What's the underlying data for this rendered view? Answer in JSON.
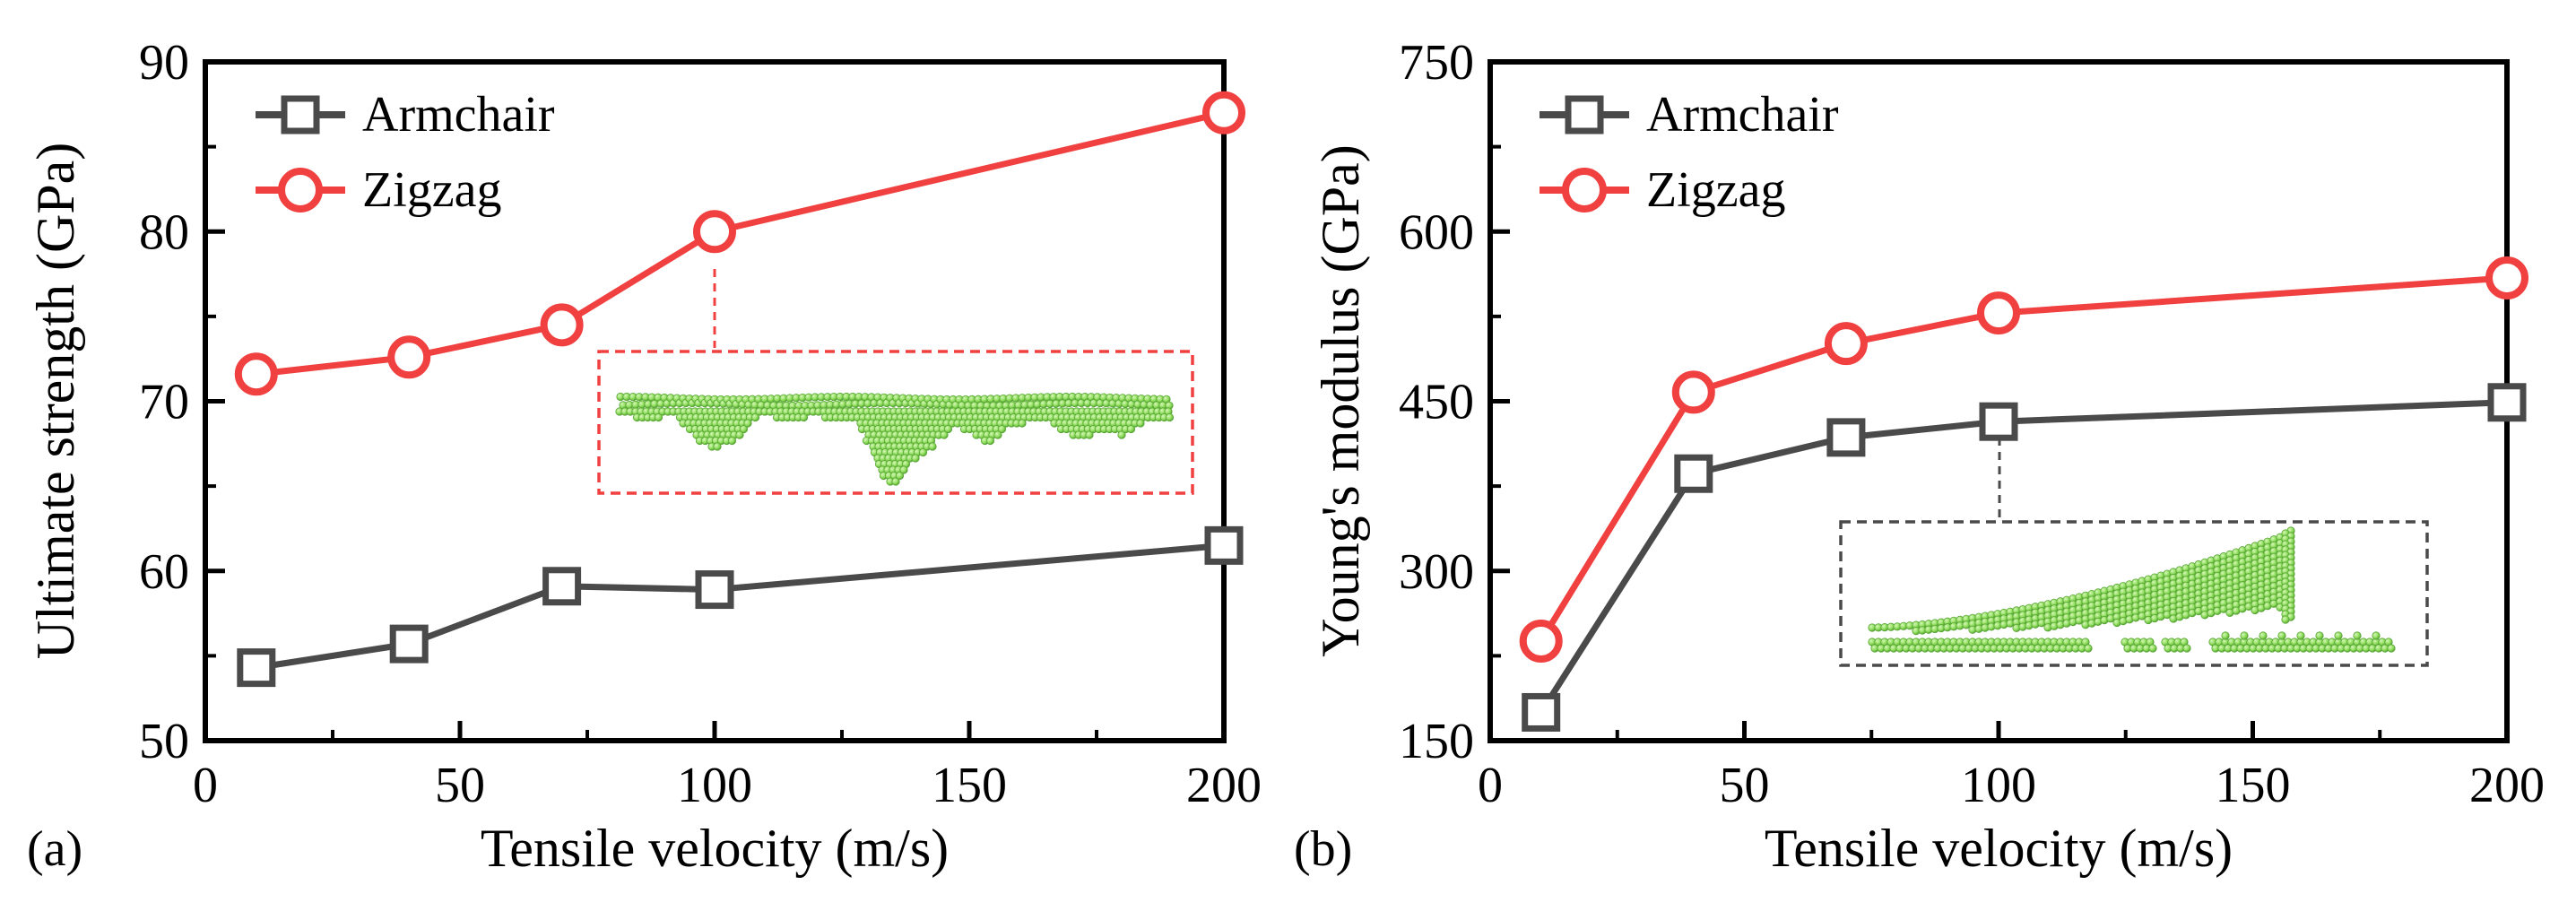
{
  "colors": {
    "armchair": "#4a4a4a",
    "zigzag": "#f04040",
    "atoms": "#8cdc5a",
    "atoms_dark": "#5aa638"
  },
  "chart_data": [
    {
      "type": "line",
      "panel_label": "(a)",
      "xlabel": "Tensile velocity (m/s)",
      "ylabel": "Ultimate strength (GPa)",
      "xlim": [
        0,
        200
      ],
      "ylim": [
        50,
        90
      ],
      "xticks": [
        0,
        50,
        100,
        150,
        200
      ],
      "yticks": [
        50,
        60,
        70,
        80,
        90
      ],
      "grid": false,
      "legend": "top-left",
      "x": [
        10,
        40,
        70,
        100,
        200
      ],
      "series": [
        {
          "name": "Armchair",
          "marker": "square",
          "color": "#4a4a4a",
          "values": [
            54.3,
            55.7,
            59.1,
            58.9,
            61.5
          ]
        },
        {
          "name": "Zigzag",
          "marker": "circle",
          "color": "#f04040",
          "values": [
            71.6,
            72.6,
            74.5,
            80.0,
            87.0
          ]
        }
      ],
      "inset": {
        "attached_series": "Zigzag",
        "at_x": 100,
        "border": "dashed",
        "color": "#f04040"
      }
    },
    {
      "type": "line",
      "panel_label": "(b)",
      "xlabel": "Tensile velocity (m/s)",
      "ylabel": "Young's modulus (GPa)",
      "xlim": [
        0,
        200
      ],
      "ylim": [
        150,
        750
      ],
      "xticks": [
        0,
        50,
        100,
        150,
        200
      ],
      "yticks": [
        150,
        300,
        450,
        600,
        750
      ],
      "grid": false,
      "legend": "top-left",
      "x": [
        10,
        40,
        70,
        100,
        200
      ],
      "series": [
        {
          "name": "Armchair",
          "marker": "square",
          "color": "#4a4a4a",
          "values": [
            175,
            386,
            418,
            432,
            449
          ]
        },
        {
          "name": "Zigzag",
          "marker": "circle",
          "color": "#f04040",
          "values": [
            238,
            458,
            501,
            528,
            559
          ]
        }
      ],
      "inset": {
        "attached_series": "Armchair",
        "at_x": 100,
        "border": "dashed",
        "color": "#4a4a4a"
      }
    }
  ]
}
